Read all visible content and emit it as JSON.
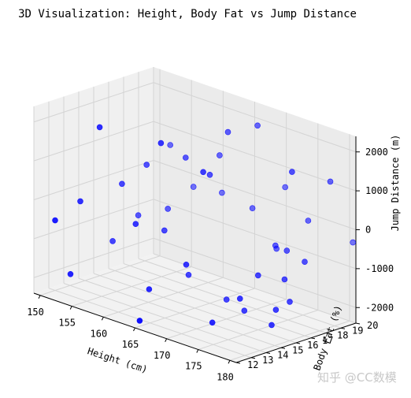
{
  "chart_data": {
    "type": "scatter",
    "title": "3D Visualization: Height, Body Fat vs Jump Distance",
    "xlabel": "Height (cm)",
    "ylabel": "Body Fat (%)",
    "zlabel": "Jump Distance (m)",
    "xlim": [
      149,
      181
    ],
    "ylim": [
      12,
      20
    ],
    "zlim": [
      -2400,
      2400
    ],
    "xticks": [
      150,
      155,
      160,
      165,
      170,
      175,
      180
    ],
    "yticks": [
      12,
      13,
      14,
      15,
      16,
      17,
      18,
      19,
      20
    ],
    "zticks": [
      -2000,
      -1000,
      0,
      1000,
      2000
    ],
    "marker_color": "#0000ff",
    "grid": true,
    "points": [
      {
        "x": 150.0,
        "y": 13.0,
        "z": -600
      },
      {
        "x": 150.2,
        "y": 14.6,
        "z": -300
      },
      {
        "x": 151.0,
        "y": 13.6,
        "z": -2000
      },
      {
        "x": 152.0,
        "y": 16.0,
        "z": -1400
      },
      {
        "x": 152.5,
        "y": 17.5,
        "z": -900
      },
      {
        "x": 153.0,
        "y": 16.2,
        "z": 100
      },
      {
        "x": 154.0,
        "y": 19.0,
        "z": 800
      },
      {
        "x": 153.5,
        "y": 14.5,
        "z": 1800
      },
      {
        "x": 155.0,
        "y": 17.0,
        "z": 600
      },
      {
        "x": 156.5,
        "y": 19.5,
        "z": -200
      },
      {
        "x": 156.0,
        "y": 18.0,
        "z": -600
      },
      {
        "x": 158.0,
        "y": 15.0,
        "z": -500
      },
      {
        "x": 159.0,
        "y": 16.5,
        "z": -800
      },
      {
        "x": 160.0,
        "y": 17.5,
        "z": 1000
      },
      {
        "x": 161.0,
        "y": 19.5,
        "z": -100
      },
      {
        "x": 162.0,
        "y": 15.0,
        "z": 1800
      },
      {
        "x": 163.0,
        "y": 18.5,
        "z": 1100
      },
      {
        "x": 164.0,
        "y": 16.0,
        "z": -1600
      },
      {
        "x": 165.0,
        "y": 17.0,
        "z": 900
      },
      {
        "x": 167.0,
        "y": 19.0,
        "z": -100
      },
      {
        "x": 166.0,
        "y": 15.0,
        "z": -1100
      },
      {
        "x": 162.5,
        "y": 14.0,
        "z": -1800
      },
      {
        "x": 165.5,
        "y": 18.0,
        "z": 1900
      },
      {
        "x": 167.5,
        "y": 15.5,
        "z": 1300
      },
      {
        "x": 169.0,
        "y": 18.5,
        "z": 2200
      },
      {
        "x": 170.0,
        "y": 16.0,
        "z": -1900
      },
      {
        "x": 171.0,
        "y": 19.5,
        "z": 600
      },
      {
        "x": 172.0,
        "y": 18.5,
        "z": -800
      },
      {
        "x": 173.0,
        "y": 18.0,
        "z": -600
      },
      {
        "x": 172.5,
        "y": 14.0,
        "z": -2100
      },
      {
        "x": 174.0,
        "y": 15.5,
        "z": -1900
      },
      {
        "x": 174.5,
        "y": 15.0,
        "z": -1500
      },
      {
        "x": 175.0,
        "y": 16.0,
        "z": -1000
      },
      {
        "x": 176.0,
        "y": 17.5,
        "z": -500
      },
      {
        "x": 177.0,
        "y": 18.5,
        "z": 200
      },
      {
        "x": 178.0,
        "y": 16.5,
        "z": -1000
      },
      {
        "x": 178.0,
        "y": 17.0,
        "z": 1700
      },
      {
        "x": 179.0,
        "y": 15.5,
        "z": -1600
      },
      {
        "x": 179.5,
        "y": 15.0,
        "z": -1900
      },
      {
        "x": 180.0,
        "y": 16.0,
        "z": -1400
      },
      {
        "x": 180.0,
        "y": 17.0,
        "z": -500
      },
      {
        "x": 180.5,
        "y": 18.5,
        "z": 1400
      },
      {
        "x": 181.0,
        "y": 19.8,
        "z": -300
      },
      {
        "x": 165.5,
        "y": 12.1,
        "z": -2200
      }
    ]
  },
  "watermark": "知乎 @CC数模"
}
